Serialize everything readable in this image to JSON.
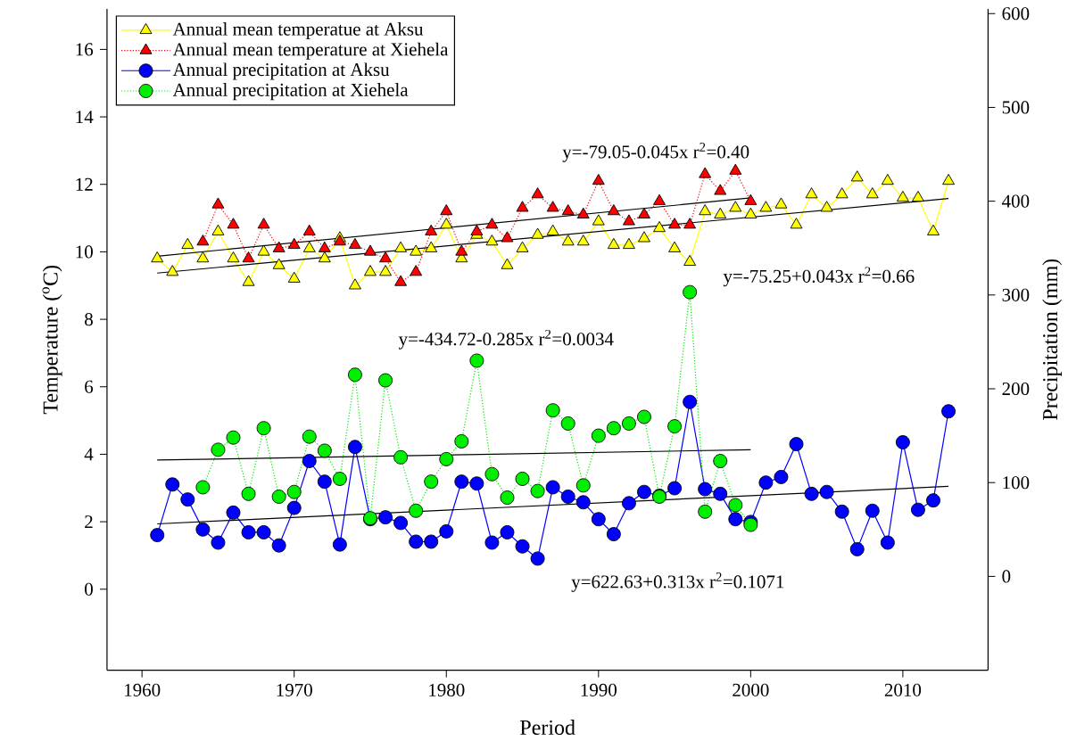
{
  "chart_data": {
    "type": "line",
    "xlabel": "Period",
    "ylabel": "Temperature ($^{o}$C)",
    "y2label": "Precipitation (mm)",
    "xlim": [
      1957.7,
      2015.6
    ],
    "xticks": [
      1960,
      1970,
      1980,
      1990,
      2000,
      2010
    ],
    "ylim": [
      -2.4,
      17.2
    ],
    "yticks": [
      0,
      2,
      4,
      6,
      8,
      10,
      12,
      14,
      16
    ],
    "y2lim": [
      -100,
      605
    ],
    "y2ticks": [
      0,
      100,
      200,
      300,
      400,
      500,
      600
    ],
    "legend": "top left",
    "grid": false,
    "series": [
      {
        "name": "Annual mean temperatue at Aksu",
        "color": "#ffff00",
        "marker": "triangle",
        "line_style": "solid",
        "axis": "y",
        "x": [
          1961,
          1962,
          1963,
          1964,
          1965,
          1966,
          1967,
          1968,
          1969,
          1970,
          1971,
          1972,
          1973,
          1974,
          1975,
          1976,
          1977,
          1978,
          1979,
          1980,
          1981,
          1982,
          1983,
          1984,
          1985,
          1986,
          1987,
          1988,
          1989,
          1990,
          1991,
          1992,
          1993,
          1994,
          1995,
          1996,
          1997,
          1998,
          1999,
          2000,
          2001,
          2002,
          2003,
          2004,
          2005,
          2006,
          2007,
          2008,
          2009,
          2010,
          2011,
          2012,
          2013
        ],
        "values": [
          9.8,
          9.4,
          10.2,
          9.8,
          10.6,
          9.8,
          9.1,
          10.0,
          9.6,
          9.2,
          10.1,
          9.8,
          10.4,
          9.0,
          9.4,
          9.4,
          10.1,
          10.0,
          10.1,
          10.8,
          9.8,
          10.5,
          10.3,
          9.6,
          10.1,
          10.5,
          10.6,
          10.3,
          10.3,
          10.9,
          10.2,
          10.2,
          10.4,
          10.7,
          10.1,
          9.7,
          11.2,
          11.1,
          11.3,
          11.1,
          11.3,
          11.4,
          10.8,
          11.7,
          11.3,
          11.7,
          12.2,
          11.7,
          12.1,
          11.6,
          11.6,
          10.6,
          12.1
        ]
      },
      {
        "name": "Annual mean temperature at Xiehela",
        "color": "#ff0000",
        "marker": "triangle",
        "line_style": "dotted",
        "axis": "y",
        "x": [
          1964,
          1965,
          1966,
          1967,
          1968,
          1969,
          1970,
          1971,
          1972,
          1973,
          1974,
          1975,
          1976,
          1977,
          1978,
          1979,
          1980,
          1981,
          1982,
          1983,
          1984,
          1985,
          1986,
          1987,
          1988,
          1989,
          1990,
          1991,
          1992,
          1993,
          1994,
          1995,
          1996,
          1997,
          1998,
          1999,
          2000
        ],
        "values": [
          10.3,
          11.4,
          10.8,
          9.8,
          10.8,
          10.1,
          10.2,
          10.6,
          10.1,
          10.3,
          10.2,
          10.0,
          9.8,
          9.1,
          9.4,
          10.6,
          11.2,
          10.0,
          10.6,
          10.8,
          10.4,
          11.3,
          11.7,
          11.3,
          11.2,
          11.1,
          12.1,
          11.2,
          10.9,
          11.1,
          11.5,
          10.8,
          10.8,
          12.3,
          11.8,
          12.4,
          11.5
        ]
      },
      {
        "name": "Annual precipitation at Aksu",
        "color": "#0000ff",
        "marker": "circle",
        "line_style": "solid",
        "axis": "y2",
        "x": [
          1961,
          1962,
          1963,
          1964,
          1965,
          1966,
          1967,
          1968,
          1969,
          1970,
          1971,
          1972,
          1973,
          1974,
          1975,
          1976,
          1977,
          1978,
          1979,
          1980,
          1981,
          1982,
          1983,
          1984,
          1985,
          1986,
          1987,
          1988,
          1989,
          1990,
          1991,
          1992,
          1993,
          1994,
          1995,
          1996,
          1997,
          1998,
          1999,
          2000,
          2001,
          2002,
          2003,
          2004,
          2005,
          2006,
          2007,
          2008,
          2009,
          2010,
          2011,
          2012,
          2013
        ],
        "values": [
          44,
          98,
          82,
          50,
          36,
          68,
          47,
          47,
          33,
          73,
          123,
          101,
          34,
          138,
          61,
          63,
          57,
          37,
          37,
          48,
          101,
          99,
          36,
          47,
          32,
          19,
          95,
          85,
          79,
          61,
          45,
          78,
          90,
          86,
          94,
          186,
          93,
          88,
          61,
          58,
          100,
          106,
          141,
          88,
          90,
          69,
          29,
          70,
          36,
          143,
          71,
          81,
          176
        ]
      },
      {
        "name": "Annual precipitation at Xiehela",
        "color": "#00ee00",
        "marker": "circle",
        "line_style": "dotted",
        "axis": "y2",
        "x": [
          1964,
          1965,
          1966,
          1967,
          1968,
          1969,
          1970,
          1971,
          1972,
          1973,
          1974,
          1975,
          1976,
          1977,
          1978,
          1979,
          1980,
          1981,
          1982,
          1983,
          1984,
          1985,
          1986,
          1987,
          1988,
          1989,
          1990,
          1991,
          1992,
          1993,
          1994,
          1995,
          1996,
          1997,
          1998,
          1999,
          2000
        ],
        "values": [
          95,
          135,
          148,
          88,
          158,
          85,
          90,
          149,
          134,
          104,
          215,
          62,
          209,
          127,
          70,
          101,
          125,
          144,
          230,
          109,
          84,
          104,
          91,
          177,
          163,
          97,
          150,
          158,
          163,
          170,
          85,
          160,
          303,
          69,
          123,
          76,
          55
        ]
      },
      {
        "type": "line",
        "color": "#000000",
        "marker": "none",
        "line_style": "solid",
        "axis": "y",
        "x": [
          1961,
          2013
        ],
        "values": [
          9.37,
          11.58
        ]
      },
      {
        "type": "line",
        "color": "#000000",
        "marker": "none",
        "line_style": "solid",
        "axis": "y",
        "x": [
          1961,
          2000
        ],
        "values": [
          9.87,
          11.6
        ]
      },
      {
        "type": "line",
        "color": "#000000",
        "marker": "none",
        "line_style": "solid",
        "axis": "y2",
        "x": [
          1961,
          2013
        ],
        "values": [
          56,
          96
        ]
      },
      {
        "type": "line",
        "color": "#000000",
        "marker": "none",
        "line_style": "solid",
        "axis": "y2",
        "x": [
          1961,
          2000
        ],
        "values": [
          124,
          135
        ]
      }
    ],
    "annotations": [
      "y=-79.05-0.045x  r$^{2}$=0.40",
      "y=-75.25+0.043x  r$^{2}$=0.66",
      "y=-434.72-0.285x  r$^{2}$=0.0034",
      "y=622.63+0.313x  r$^{2}$=0.1071"
    ]
  }
}
